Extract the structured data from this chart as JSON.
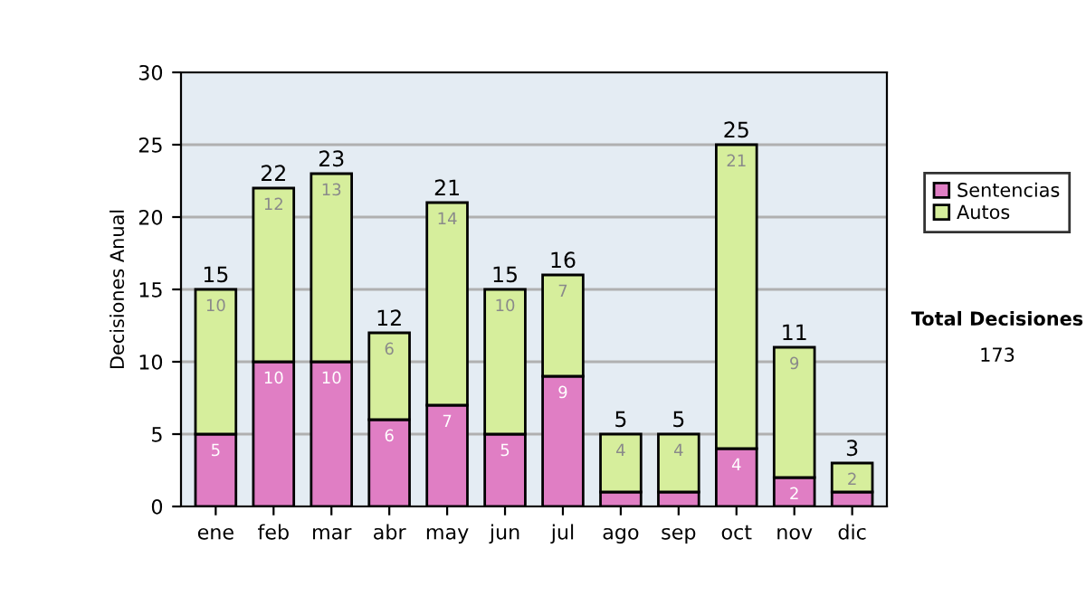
{
  "chart_data": {
    "type": "bar",
    "stacked": true,
    "ylabel": "Decisiones Anual",
    "categories": [
      "ene",
      "feb",
      "mar",
      "abr",
      "may",
      "jun",
      "jul",
      "ago",
      "sep",
      "oct",
      "nov",
      "dic"
    ],
    "series": [
      {
        "name": "Sentencias",
        "color": "#e07ec4",
        "values": [
          5,
          10,
          10,
          6,
          7,
          5,
          9,
          1,
          1,
          4,
          2,
          1
        ],
        "value_labels": [
          "5",
          "10",
          "10",
          "6",
          "7",
          "5",
          "9",
          null,
          null,
          "4",
          "2",
          null
        ]
      },
      {
        "name": "Autos",
        "color": "#d6ee9c",
        "values": [
          10,
          12,
          13,
          6,
          14,
          10,
          7,
          4,
          4,
          21,
          9,
          2
        ],
        "value_labels": [
          "10",
          "12",
          "13",
          "6",
          "14",
          "10",
          "7",
          "4",
          "4",
          "21",
          "9",
          "2"
        ]
      }
    ],
    "totals": [
      "15",
      "22",
      "23",
      "12",
      "21",
      "15",
      "16",
      "5",
      "5",
      "25",
      "11",
      "3"
    ],
    "ylim": [
      0,
      30
    ],
    "yticks": [
      0,
      5,
      10,
      15,
      20,
      25,
      30
    ],
    "grid": "y",
    "legend": "right",
    "annotations": [
      "Total Decisiones",
      "173"
    ]
  }
}
